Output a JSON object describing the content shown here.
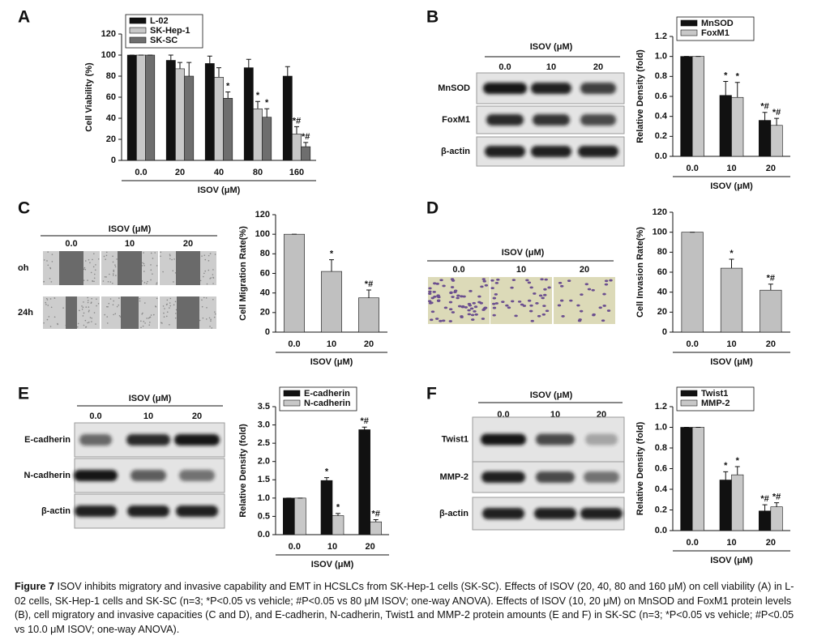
{
  "panels": [
    {
      "label": "A"
    },
    {
      "label": "B",
      "image": {
        "xlabel": "ISOV (μM)",
        "categories": [
          "0.0",
          "10",
          "20"
        ],
        "rows": [
          "MnSOD",
          "FoxM1",
          "β-actin"
        ]
      }
    },
    {
      "label": "C",
      "image": {
        "xlabel": "ISOV (μM)",
        "categories": [
          "0.0",
          "10",
          "20"
        ],
        "rows": [
          "oh",
          "24h"
        ]
      }
    },
    {
      "label": "D",
      "image": {
        "xlabel": "ISOV (μM)",
        "categories": [
          "0.0",
          "10",
          "20"
        ]
      }
    },
    {
      "label": "E",
      "image": {
        "xlabel": "ISOV (μM)",
        "categories": [
          "0.0",
          "10",
          "20"
        ],
        "rows": [
          "E-cadherin",
          "N-cadherin",
          "β-actin"
        ]
      }
    },
    {
      "label": "F",
      "image": {
        "xlabel": "ISOV (μM)",
        "categories": [
          "0.0",
          "10",
          "20"
        ],
        "rows": [
          "Twist1",
          "MMP-2",
          "β-actin"
        ]
      }
    }
  ],
  "chart_data": [
    {
      "type": "bar",
      "ylabel": "Cell Viability (%)",
      "xlabel": "ISOV (μM)",
      "categories": [
        "0.0",
        "20",
        "40",
        "80",
        "160"
      ],
      "ylim": [
        0,
        120
      ],
      "yticks": [
        0,
        20,
        40,
        60,
        80,
        100,
        120
      ],
      "legend": "upper left",
      "series": [
        {
          "name": "L-02",
          "color": "#111111",
          "values": [
            100,
            95,
            92,
            88,
            80
          ],
          "error": [
            0,
            5,
            7,
            8,
            9
          ],
          "annotations": [
            null,
            null,
            null,
            null,
            null
          ]
        },
        {
          "name": "SK-Hep-1",
          "color": "#c8c8c8",
          "values": [
            100,
            87,
            79,
            49,
            25
          ],
          "error": [
            0,
            6,
            9,
            7,
            7
          ],
          "annotations": [
            null,
            null,
            null,
            "*",
            "*#"
          ]
        },
        {
          "name": "SK-SC",
          "color": "#6e6e6e",
          "values": [
            100,
            80,
            59,
            41,
            13
          ],
          "error": [
            0,
            13,
            6,
            8,
            4
          ],
          "annotations": [
            null,
            null,
            "*",
            "*",
            "*#"
          ]
        }
      ]
    },
    {
      "type": "bar",
      "ylabel": "Relative Density (fold)",
      "xlabel": "ISOV (μM)",
      "categories": [
        "0.0",
        "10",
        "20"
      ],
      "ylim": [
        0,
        1.2
      ],
      "yticks": [
        {
          "value": 0,
          "label": "0.0"
        },
        0.2,
        0.4,
        0.6,
        0.8,
        {
          "value": 1,
          "label": "1.0"
        },
        1.2
      ],
      "legend": "upper left",
      "series": [
        {
          "name": "MnSOD",
          "color": "#111111",
          "values": [
            1.0,
            0.61,
            0.36
          ],
          "error": [
            0,
            0.14,
            0.08
          ],
          "annotations": [
            null,
            "*",
            "*#"
          ]
        },
        {
          "name": "FoxM1",
          "color": "#c8c8c8",
          "values": [
            1.0,
            0.59,
            0.31
          ],
          "error": [
            0,
            0.15,
            0.07
          ],
          "annotations": [
            null,
            "*",
            "*#"
          ]
        }
      ]
    },
    {
      "type": "bar",
      "ylabel": "Cell Migration Rate(%)",
      "xlabel": "ISOV (μM)",
      "categories": [
        "0.0",
        "10",
        "20"
      ],
      "ylim": [
        0,
        120
      ],
      "yticks": [
        0,
        20,
        40,
        60,
        80,
        100,
        120
      ],
      "color": "#c0c0c0",
      "values": [
        100,
        62,
        35
      ],
      "error": [
        0,
        12,
        8
      ],
      "annotations": [
        null,
        "*",
        "*#"
      ]
    },
    {
      "type": "bar",
      "ylabel": "Cell Invasion Rate(%)",
      "xlabel": "ISOV (μM)",
      "categories": [
        "0.0",
        "10",
        "20"
      ],
      "ylim": [
        0,
        120
      ],
      "yticks": [
        0,
        20,
        40,
        60,
        80,
        100,
        120
      ],
      "color": "#c0c0c0",
      "values": [
        100,
        64,
        42
      ],
      "error": [
        0,
        9,
        6
      ],
      "annotations": [
        null,
        "*",
        "*#"
      ]
    },
    {
      "type": "bar",
      "ylabel": "Relative Density (fold)",
      "xlabel": "ISOV (μM)",
      "categories": [
        "0.0",
        "10",
        "20"
      ],
      "ylim": [
        0,
        3.5
      ],
      "yticks": [
        {
          "value": 0,
          "label": "0.0"
        },
        0.5,
        {
          "value": 1,
          "label": "1.0"
        },
        1.5,
        {
          "value": 2,
          "label": "2.0"
        },
        2.5,
        {
          "value": 3,
          "label": "3.0"
        },
        3.5
      ],
      "legend": "upper left",
      "series": [
        {
          "name": "E-cadherin",
          "color": "#111111",
          "values": [
            1.0,
            1.48,
            2.87
          ],
          "error": [
            0,
            0.08,
            0.07
          ],
          "annotations": [
            null,
            "*",
            "*#"
          ]
        },
        {
          "name": "N-cadherin",
          "color": "#c8c8c8",
          "values": [
            1.0,
            0.52,
            0.35
          ],
          "error": [
            0,
            0.06,
            0.06
          ],
          "annotations": [
            null,
            "*",
            "*#"
          ]
        }
      ]
    },
    {
      "type": "bar",
      "ylabel": "Relative Density (fold)",
      "xlabel": "ISOV (μM)",
      "categories": [
        "0.0",
        "10",
        "20"
      ],
      "ylim": [
        0,
        1.2
      ],
      "yticks": [
        {
          "value": 0,
          "label": "0.0"
        },
        0.2,
        0.4,
        0.6,
        0.8,
        {
          "value": 1,
          "label": "1.0"
        },
        1.2
      ],
      "legend": "upper left",
      "series": [
        {
          "name": "Twist1",
          "color": "#111111",
          "values": [
            1.0,
            0.49,
            0.19
          ],
          "error": [
            0,
            0.08,
            0.06
          ],
          "annotations": [
            null,
            "*",
            "*#"
          ]
        },
        {
          "name": "MMP-2",
          "color": "#c8c8c8",
          "values": [
            1.0,
            0.54,
            0.23
          ],
          "error": [
            0,
            0.08,
            0.04
          ],
          "annotations": [
            null,
            "*",
            "*#"
          ]
        }
      ]
    }
  ],
  "caption": {
    "label": "Figure 7",
    "text": "ISOV inhibits migratory and invasive capability and EMT in HCSLCs from SK-Hep-1 cells (SK-SC). Effects of ISOV (20, 40, 80 and 160 μM) on cell viability (A) in L-02 cells, SK-Hep-1 cells and SK-SC (n=3; *P<0.05 vs vehicle; #P<0.05 vs 80 μM ISOV; one-way ANOVA). Effects of ISOV (10, 20 μM) on MnSOD and FoxM1 protein levels (B), cell migratory and invasive capacities (C and D), and E-cadherin, N-cadherin, Twist1 and MMP-2 protein amounts (E and F) in SK-SC (n=3; *P<0.05 vs vehicle; #P<0.05 vs 10.0 μM ISOV; one-way ANOVA)."
  }
}
